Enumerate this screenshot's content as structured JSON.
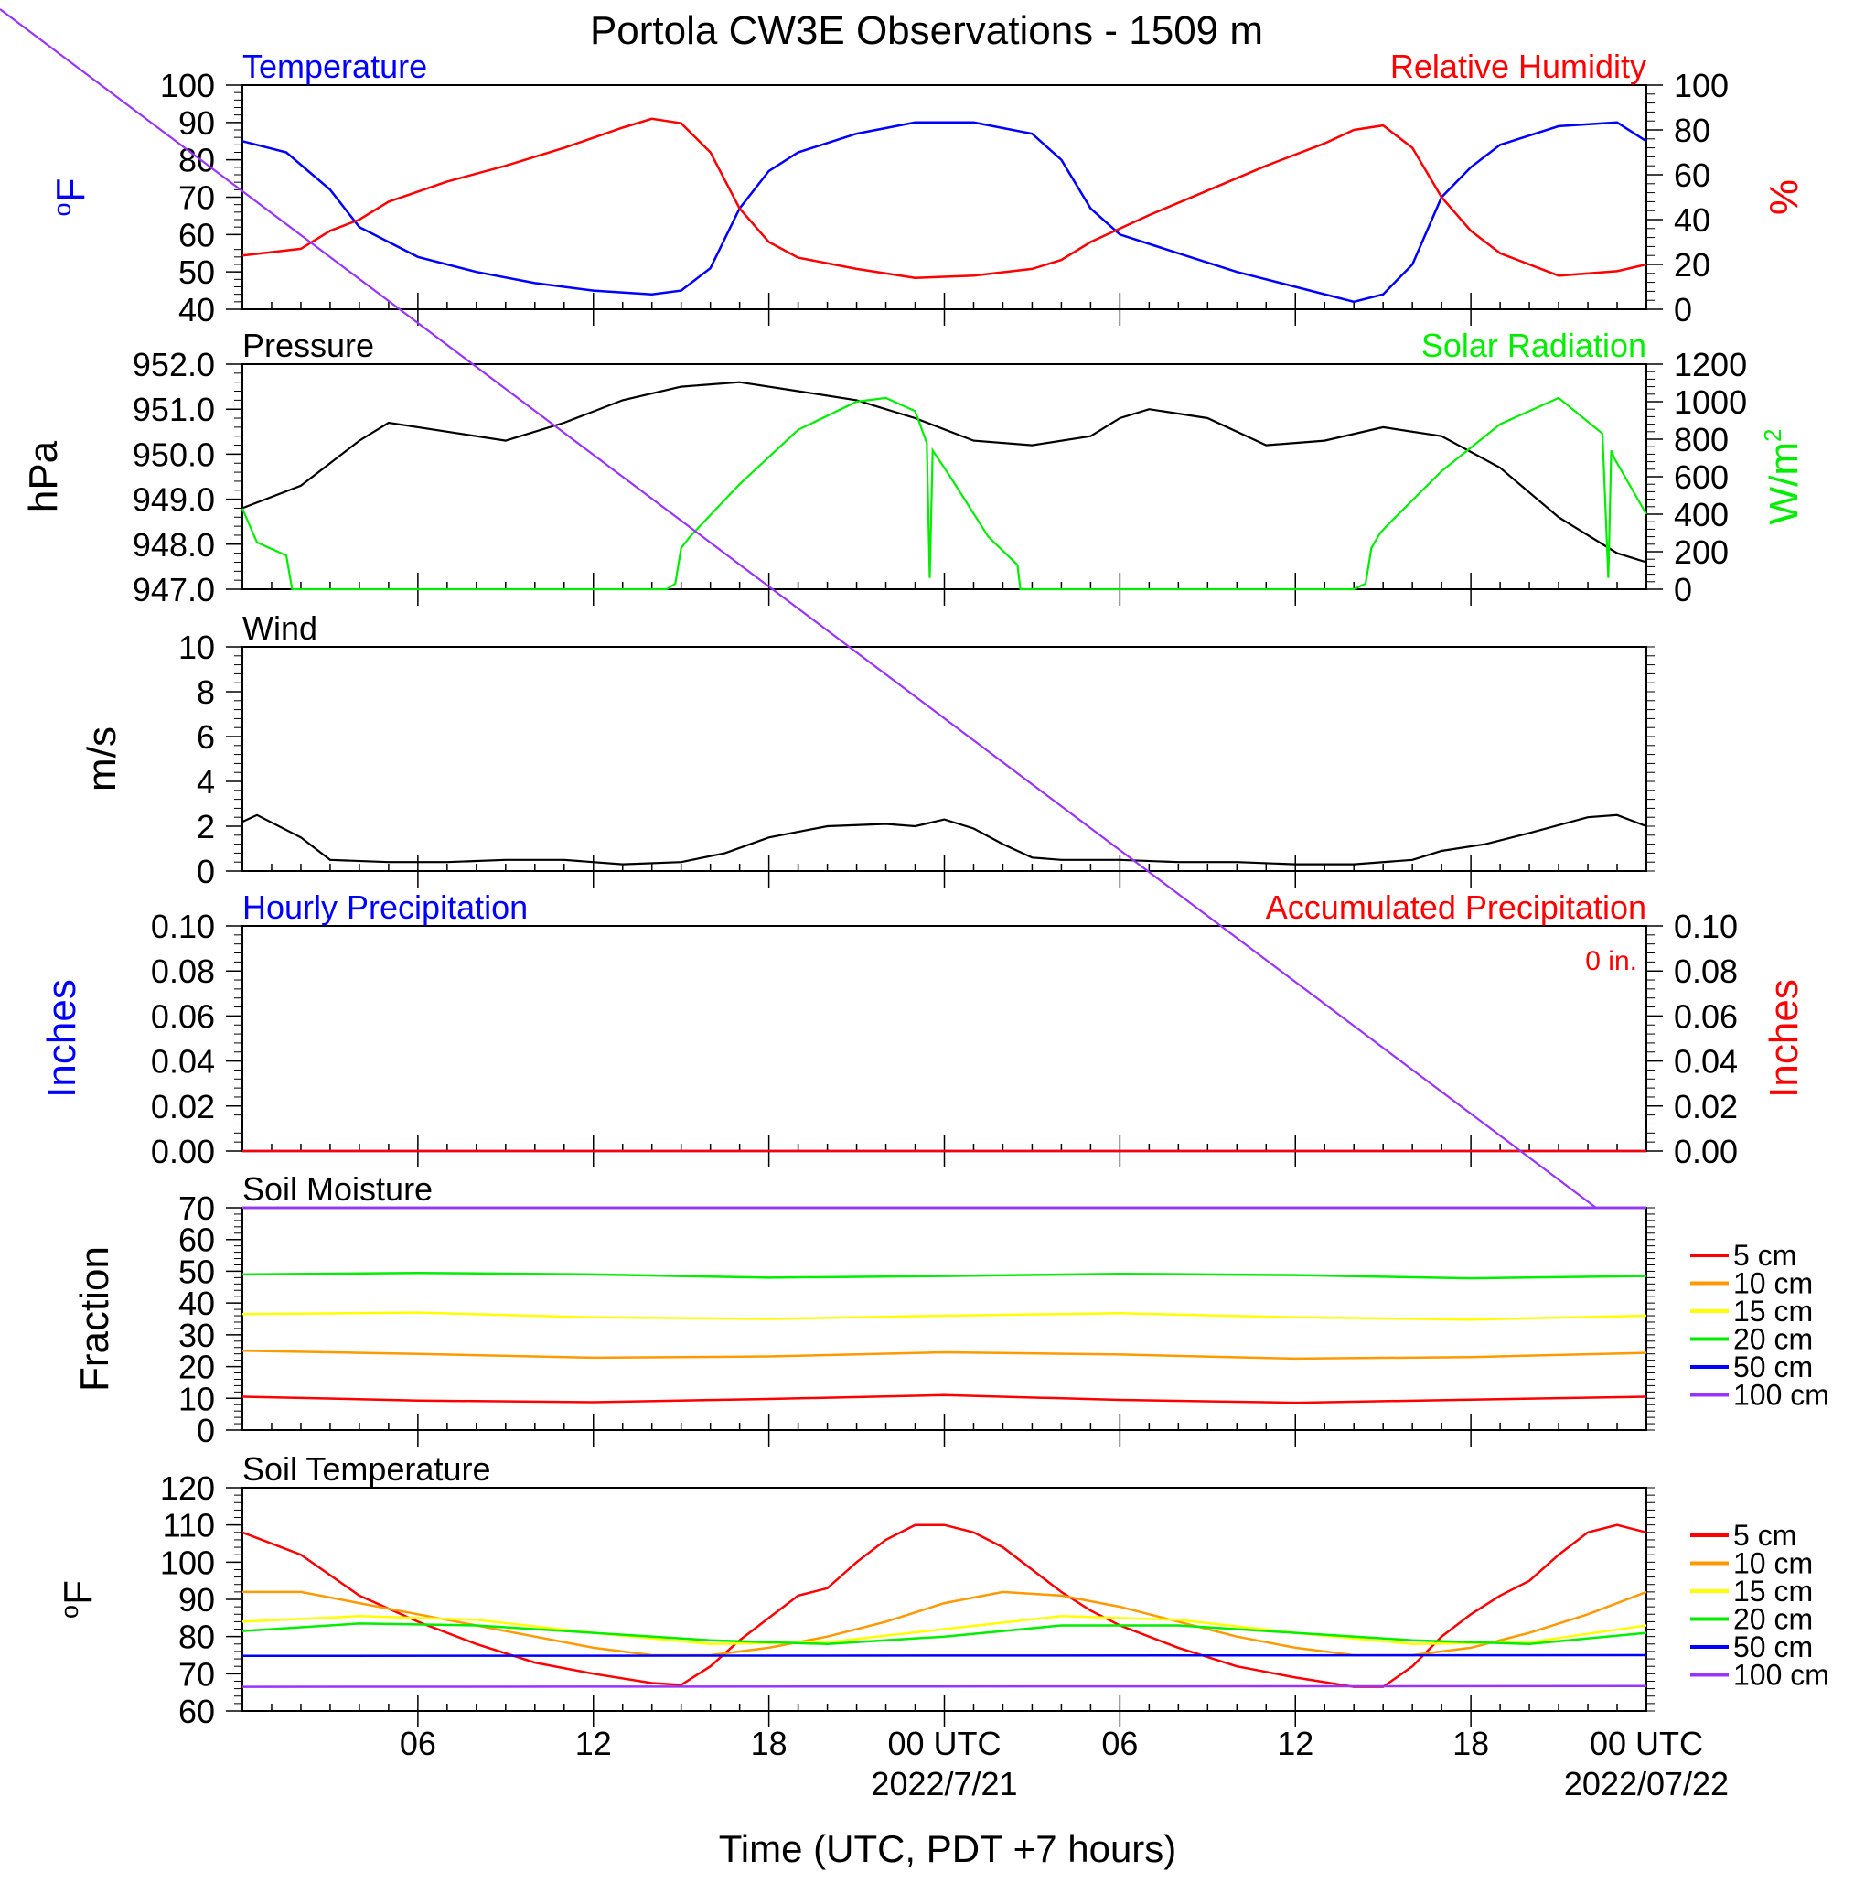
{
  "title": "Portola CW3E Observations - 1509 m",
  "xlabel": "Time (UTC, PDT +7 hours)",
  "colors": {
    "blue": "#0000ff",
    "red": "#ff0000",
    "green": "#00ee00",
    "black": "#000000",
    "orange": "#ff9900",
    "yellow": "#ffff00",
    "purple": "#9933ff",
    "diagonal": "#9933ff"
  },
  "time_axis": {
    "range_hours": [
      -5,
      43
    ],
    "ticks": [
      {
        "hour": 1,
        "label": "06"
      },
      {
        "hour": 7,
        "label": "12"
      },
      {
        "hour": 13,
        "label": "18"
      },
      {
        "hour": 19,
        "label": "00 UTC",
        "date": "2022/7/21"
      },
      {
        "hour": 25,
        "label": "06"
      },
      {
        "hour": 31,
        "label": "12"
      },
      {
        "hour": 37,
        "label": "18"
      },
      {
        "hour": 43,
        "label": "00 UTC",
        "date": "2022/07/22"
      }
    ]
  },
  "chart_data": [
    {
      "type": "line",
      "panel": "temperature-humidity",
      "left_title": "Temperature",
      "right_title": "Relative Humidity",
      "ylabel_left": "oF",
      "ylabel_right": "%",
      "ylim_left": [
        40,
        100
      ],
      "yticks_left": [
        100,
        90,
        80,
        70,
        60,
        50,
        40
      ],
      "ylim_right": [
        0,
        100
      ],
      "yticks_right": [
        100,
        80,
        60,
        40,
        20,
        0
      ],
      "series": [
        {
          "name": "Temperature",
          "axis": "left",
          "color": "#0000ff",
          "x": [
            -5,
            -3.5,
            -2,
            -1,
            0,
            1,
            3,
            5,
            7,
            9,
            10,
            11,
            12,
            13,
            14,
            16,
            18,
            20,
            22,
            23,
            24,
            25,
            27,
            29,
            31,
            33,
            34,
            35,
            36,
            37,
            38,
            40,
            42,
            43
          ],
          "y": [
            85,
            82,
            72,
            62,
            58,
            54,
            50,
            47,
            45,
            44,
            45,
            51,
            67,
            77,
            82,
            87,
            90,
            90,
            87,
            80,
            67,
            60,
            55,
            50,
            46,
            42,
            44,
            52,
            70,
            78,
            84,
            89,
            90,
            85
          ]
        },
        {
          "name": "Relative Humidity",
          "axis": "right",
          "color": "#ff0000",
          "x": [
            -5,
            -3,
            -2,
            -1,
            0,
            2,
            4,
            6,
            8,
            9,
            10,
            11,
            12,
            13,
            14,
            16,
            18,
            20,
            22,
            23,
            24,
            26,
            28,
            30,
            32,
            33,
            34,
            35,
            36,
            37,
            38,
            40,
            42,
            43
          ],
          "y": [
            24,
            27,
            35,
            40,
            48,
            57,
            64,
            72,
            81,
            85,
            83,
            70,
            45,
            30,
            23,
            18,
            14,
            15,
            18,
            22,
            30,
            42,
            53,
            64,
            74,
            80,
            82,
            72,
            50,
            35,
            25,
            15,
            17,
            20
          ]
        }
      ]
    },
    {
      "type": "line",
      "panel": "pressure-solar",
      "left_title": "Pressure",
      "right_title": "Solar Radiation",
      "ylabel_left": "hPa",
      "ylabel_right": "W/m2",
      "ylim_left": [
        947,
        952
      ],
      "yticks_left": [
        "952.0",
        "951.0",
        "950.0",
        "949.0",
        "948.0",
        "947.0"
      ],
      "ylim_right": [
        0,
        1200
      ],
      "yticks_right": [
        1200,
        1000,
        800,
        600,
        400,
        200,
        0
      ],
      "series": [
        {
          "name": "Pressure",
          "axis": "left",
          "color": "#000000",
          "x": [
            -5,
            -3,
            -1,
            0,
            2,
            4,
            6,
            8,
            10,
            12,
            14,
            16,
            18,
            20,
            22,
            24,
            25,
            26,
            28,
            30,
            32,
            34,
            36,
            38,
            40,
            42,
            43
          ],
          "y": [
            948.8,
            949.3,
            950.3,
            950.7,
            950.5,
            950.3,
            950.7,
            951.2,
            951.5,
            951.6,
            951.4,
            951.2,
            950.8,
            950.3,
            950.2,
            950.4,
            950.8,
            951.0,
            950.8,
            950.2,
            950.3,
            950.6,
            950.4,
            949.7,
            948.6,
            947.8,
            947.6
          ]
        },
        {
          "name": "Solar Radiation",
          "axis": "right",
          "color": "#00ee00",
          "x": [
            -5,
            -4.5,
            -3.5,
            -3.3,
            9.5,
            9.8,
            10,
            10.3,
            12,
            14,
            16,
            17,
            18,
            18.4,
            18.5,
            18.6,
            19.2,
            20.5,
            21.5,
            21.6,
            33,
            33.4,
            33.6,
            33.9,
            34.2,
            36,
            38,
            40,
            41.5,
            41.7,
            41.8,
            41.9,
            43
          ],
          "y": [
            430,
            250,
            180,
            0,
            0,
            30,
            220,
            280,
            560,
            850,
            1000,
            1020,
            950,
            780,
            60,
            740,
            600,
            280,
            130,
            0,
            0,
            30,
            220,
            300,
            350,
            630,
            880,
            1020,
            830,
            60,
            740,
            700,
            400
          ]
        }
      ]
    },
    {
      "type": "line",
      "panel": "wind",
      "left_title": "Wind",
      "ylabel_left": "m/s",
      "ylim_left": [
        0,
        10
      ],
      "yticks_left": [
        10,
        8,
        6,
        4,
        2,
        0
      ],
      "series": [
        {
          "name": "Wind",
          "axis": "left",
          "color": "#000000",
          "x": [
            -5,
            -4.5,
            -3,
            -2,
            0,
            2,
            4,
            6,
            8,
            10,
            11.5,
            13,
            15,
            17,
            18,
            19,
            20,
            21,
            22,
            23,
            25,
            27,
            29,
            31,
            33,
            35,
            36,
            37.5,
            39,
            41,
            42,
            43
          ],
          "y": [
            2.2,
            2.5,
            1.5,
            0.5,
            0.4,
            0.4,
            0.5,
            0.5,
            0.3,
            0.4,
            0.8,
            1.5,
            2.0,
            2.1,
            2.0,
            2.3,
            1.9,
            1.2,
            0.6,
            0.5,
            0.5,
            0.4,
            0.4,
            0.3,
            0.3,
            0.5,
            0.9,
            1.2,
            1.7,
            2.4,
            2.5,
            2.0
          ]
        }
      ]
    },
    {
      "type": "line",
      "panel": "precipitation",
      "left_title": "Hourly Precipitation",
      "right_title": "Accumulated Precipitation",
      "accumulated_text": "0 in.",
      "ylabel_left": "Inches",
      "ylabel_right": "Inches",
      "ylim_left": [
        0,
        0.1
      ],
      "yticks_left": [
        "0.10",
        "0.08",
        "0.06",
        "0.04",
        "0.02",
        "0.00"
      ],
      "ylim_right": [
        0,
        0.1
      ],
      "yticks_right": [
        "0.10",
        "0.08",
        "0.06",
        "0.04",
        "0.02",
        "0.00"
      ],
      "series": [
        {
          "name": "Hourly Precipitation",
          "axis": "left",
          "color": "#0000ff",
          "x": [
            -5,
            43
          ],
          "y": [
            0,
            0
          ]
        },
        {
          "name": "Accumulated Precipitation",
          "axis": "right",
          "color": "#ff0000",
          "x": [
            -5,
            43
          ],
          "y": [
            0,
            0
          ]
        }
      ]
    },
    {
      "type": "line",
      "panel": "soil-moisture",
      "left_title": "Soil Moisture",
      "ylabel_left": "Fraction",
      "ylim_left": [
        0,
        70
      ],
      "yticks_left": [
        70,
        60,
        50,
        40,
        30,
        20,
        10,
        0
      ],
      "series": [
        {
          "name": "5 cm",
          "color": "#ff0000",
          "x": [
            -5,
            1,
            7,
            13,
            19,
            25,
            31,
            37,
            43
          ],
          "y": [
            10.5,
            9.3,
            8.8,
            9.8,
            11,
            9.5,
            8.6,
            9.6,
            10.5
          ]
        },
        {
          "name": "10 cm",
          "color": "#ff9900",
          "x": [
            -5,
            1,
            7,
            13,
            19,
            25,
            31,
            37,
            43
          ],
          "y": [
            25,
            24,
            22.8,
            23.2,
            24.5,
            23.8,
            22.5,
            23.0,
            24.3
          ]
        },
        {
          "name": "15 cm",
          "color": "#ffff00",
          "x": [
            -5,
            1,
            7,
            13,
            19,
            25,
            31,
            37,
            43
          ],
          "y": [
            36.5,
            37,
            35.5,
            35,
            36,
            36.8,
            35.5,
            34.8,
            36
          ]
        },
        {
          "name": "20 cm",
          "color": "#00ee00",
          "x": [
            -5,
            1,
            7,
            13,
            19,
            25,
            31,
            37,
            43
          ],
          "y": [
            49,
            49.5,
            49,
            48,
            48.5,
            49.2,
            48.8,
            47.8,
            48.5
          ]
        },
        {
          "name": "50 cm",
          "color": "#0000ff",
          "x": [
            -5,
            43
          ],
          "y": [
            70,
            70
          ]
        },
        {
          "name": "100 cm",
          "color": "#9933ff",
          "x": [
            -5,
            43
          ],
          "y": [
            70,
            70
          ]
        }
      ],
      "legend": [
        "5 cm",
        "10 cm",
        "15 cm",
        "20 cm",
        "50 cm",
        "100 cm"
      ]
    },
    {
      "type": "line",
      "panel": "soil-temperature",
      "left_title": "Soil Temperature",
      "ylabel_left": "oF",
      "ylim_left": [
        60,
        120
      ],
      "yticks_left": [
        120,
        110,
        100,
        90,
        80,
        70,
        60
      ],
      "series": [
        {
          "name": "5 cm",
          "color": "#ff0000",
          "x": [
            -5,
            -3,
            -1,
            1,
            3,
            5,
            7,
            9,
            10,
            11,
            12,
            13,
            13.5,
            14,
            15,
            16,
            17,
            18,
            19,
            20,
            21,
            22,
            23,
            24,
            25,
            27,
            29,
            31,
            33,
            34,
            35,
            36,
            37,
            38,
            39,
            40,
            41,
            42,
            43
          ],
          "y": [
            108,
            102,
            91,
            84,
            78,
            73,
            70,
            67.5,
            67,
            72,
            79,
            85,
            88,
            91,
            93,
            100,
            106,
            110,
            110,
            108,
            104,
            98,
            92,
            87,
            83,
            77,
            72,
            69,
            66.5,
            66.5,
            72,
            80,
            86,
            91,
            95,
            102,
            108,
            110,
            108
          ]
        },
        {
          "name": "10 cm",
          "color": "#ff9900",
          "x": [
            -5,
            -3,
            -1,
            1,
            3,
            5,
            7,
            9,
            11,
            13,
            15,
            17,
            19,
            21,
            23,
            25,
            27,
            29,
            31,
            33,
            35,
            37,
            39,
            41,
            43
          ],
          "y": [
            92,
            92,
            89,
            86,
            83,
            80,
            77,
            75,
            75,
            77,
            80,
            84,
            89,
            92,
            91,
            88,
            84,
            80,
            77,
            75,
            75,
            77,
            81,
            86,
            92
          ]
        },
        {
          "name": "15 cm",
          "color": "#ffff00",
          "x": [
            -5,
            -1,
            3,
            7,
            11,
            15,
            19,
            23,
            27,
            31,
            35,
            39,
            43
          ],
          "y": [
            84,
            85.5,
            84.5,
            81,
            78,
            78.5,
            82,
            85.5,
            84.5,
            81,
            78,
            78.5,
            83
          ]
        },
        {
          "name": "20 cm",
          "color": "#00ee00",
          "x": [
            -5,
            -1,
            3,
            7,
            11,
            15,
            19,
            23,
            27,
            31,
            35,
            39,
            43
          ],
          "y": [
            81.5,
            83.5,
            83,
            81,
            79,
            78,
            80,
            83,
            83,
            81,
            79,
            78,
            81
          ]
        },
        {
          "name": "50 cm",
          "color": "#0000ff",
          "x": [
            -5,
            43
          ],
          "y": [
            74.8,
            75
          ]
        },
        {
          "name": "100 cm",
          "color": "#9933ff",
          "x": [
            -5,
            43
          ],
          "y": [
            66.5,
            66.7
          ]
        }
      ],
      "legend": [
        "5 cm",
        "10 cm",
        "15 cm",
        "20 cm",
        "50 cm",
        "100 cm"
      ]
    }
  ]
}
